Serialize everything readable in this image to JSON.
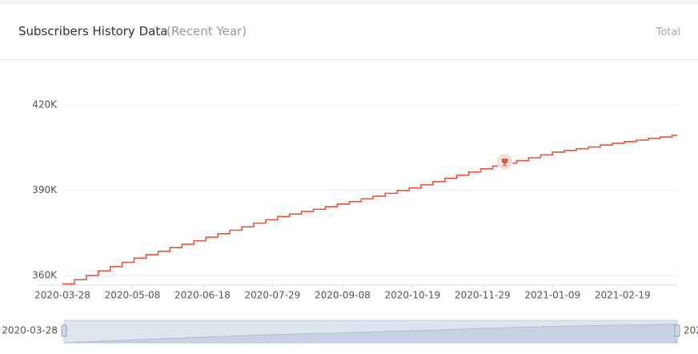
{
  "header": {
    "title": "Subscribers History Data",
    "subtitle": "(Recent Year)",
    "tab": "Total"
  },
  "chart_data": {
    "type": "line",
    "step": true,
    "x": [
      "2020-03-28",
      "2020-04-04",
      "2020-04-11",
      "2020-04-18",
      "2020-04-25",
      "2020-05-02",
      "2020-05-09",
      "2020-05-16",
      "2020-05-23",
      "2020-05-30",
      "2020-06-06",
      "2020-06-13",
      "2020-06-20",
      "2020-06-27",
      "2020-07-04",
      "2020-07-11",
      "2020-07-18",
      "2020-07-25",
      "2020-08-01",
      "2020-08-08",
      "2020-08-15",
      "2020-08-22",
      "2020-08-29",
      "2020-09-05",
      "2020-09-12",
      "2020-09-19",
      "2020-09-26",
      "2020-10-03",
      "2020-10-10",
      "2020-10-17",
      "2020-10-24",
      "2020-10-31",
      "2020-11-07",
      "2020-11-14",
      "2020-11-21",
      "2020-11-28",
      "2020-12-05",
      "2020-12-12",
      "2020-12-19",
      "2020-12-26",
      "2021-01-02",
      "2021-01-09",
      "2021-01-16",
      "2021-01-23",
      "2021-01-30",
      "2021-02-06",
      "2021-02-13",
      "2021-02-20",
      "2021-02-27",
      "2021-03-06",
      "2021-03-13",
      "2021-03-20"
    ],
    "values": [
      357000,
      358500,
      360000,
      361600,
      363100,
      364600,
      366100,
      367300,
      368500,
      369800,
      371000,
      372200,
      373500,
      374700,
      375900,
      377100,
      378400,
      379600,
      380700,
      381600,
      382500,
      383300,
      384200,
      385100,
      386000,
      387000,
      387900,
      388900,
      389900,
      390800,
      391900,
      393000,
      394200,
      395300,
      396400,
      397500,
      398500,
      399500,
      400400,
      401400,
      402400,
      403400,
      404000,
      404600,
      405200,
      405900,
      406500,
      407100,
      407600,
      408200,
      408700,
      409300
    ],
    "color": "#e8533f",
    "milestone": {
      "x": "2020-12-12",
      "value": 400000
    },
    "xlim": [
      "2020-03-28",
      "2021-03-23"
    ],
    "xticks": [
      "2020-03-28",
      "2020-05-08",
      "2020-06-18",
      "2020-07-29",
      "2020-09-08",
      "2020-10-19",
      "2020-11-29",
      "2021-01-09",
      "2021-02-19"
    ],
    "ylim": [
      356600,
      420000
    ],
    "yticks": [
      {
        "value": 360000,
        "label": "360K"
      },
      {
        "value": 390000,
        "label": "390K"
      },
      {
        "value": 420000,
        "label": "420K"
      }
    ],
    "grid": true
  }
}
